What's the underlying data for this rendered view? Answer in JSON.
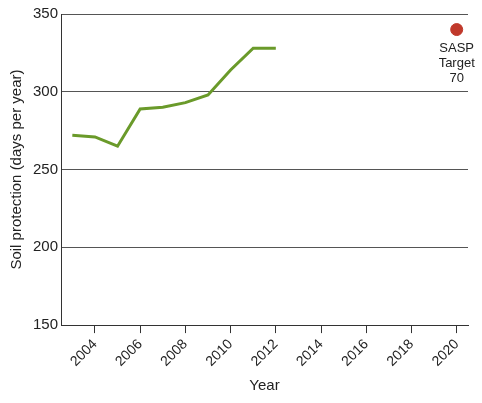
{
  "chart_data": {
    "type": "line",
    "x_label": "Year",
    "y_label": "Soil protection (days per year)",
    "series": [
      {
        "color": "#6a9a2a",
        "type": "line",
        "x": [
          2003,
          2004,
          2005,
          2006,
          2007,
          2008,
          2009,
          2010,
          2011,
          2012
        ],
        "values": [
          272,
          271,
          265,
          289,
          290,
          293,
          298,
          314,
          328,
          328
        ]
      },
      {
        "color": "#c0392b",
        "type": "scatter",
        "marker": "circle",
        "x": [
          2020
        ],
        "values": [
          340
        ]
      }
    ],
    "annotations": [
      {
        "text": "SASP Target 70",
        "x": 2020,
        "y": 340
      }
    ],
    "xlim": [
      2002.5,
      2020.5
    ],
    "xticks": [
      2004,
      2006,
      2008,
      2010,
      2012,
      2014,
      2016,
      2018,
      2020
    ],
    "ylim": [
      150,
      350
    ],
    "yticks": [
      150,
      200,
      250,
      300,
      350
    ],
    "grid": "y"
  }
}
